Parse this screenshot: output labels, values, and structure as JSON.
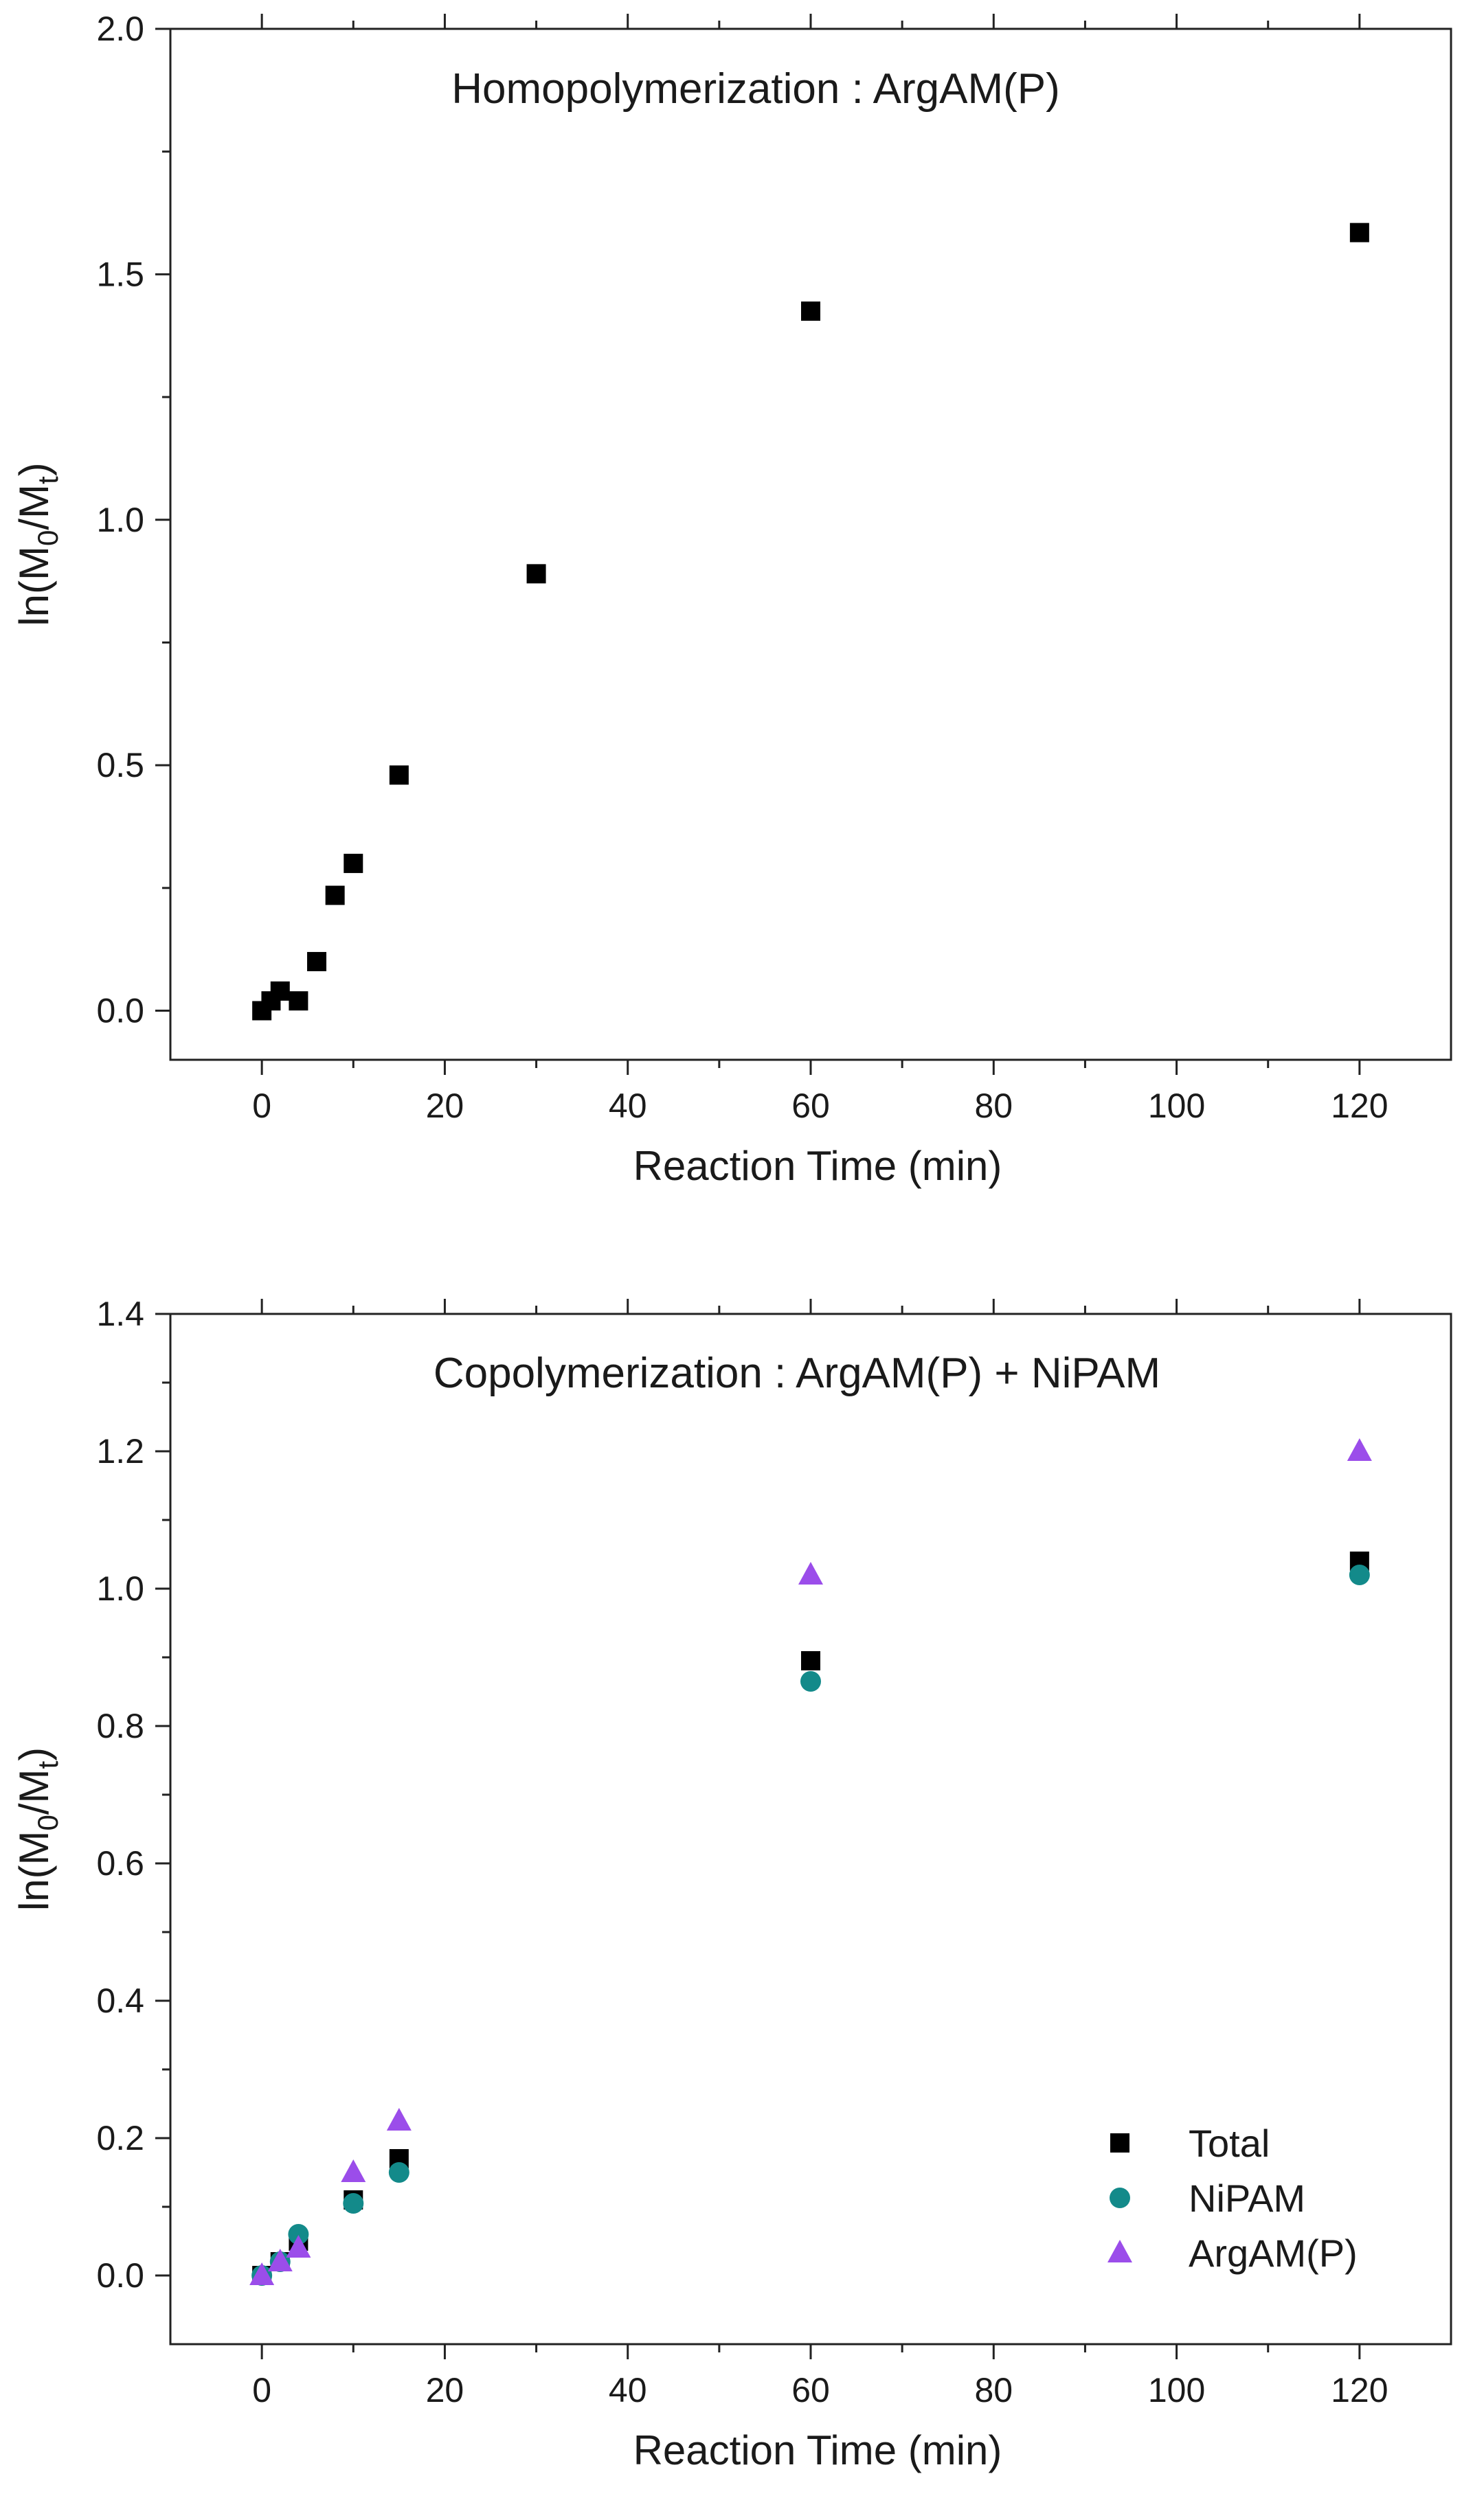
{
  "chart_data": [
    {
      "type": "scatter",
      "title": "Homopolymerization : ArgAM(P)",
      "xlabel": "Reaction Time (min)",
      "ylabel": {
        "prefix": "ln(M",
        "sub1": "0",
        "mid": "/M",
        "sub2": "t",
        "suffix": ")"
      },
      "xlim": [
        -10,
        130
      ],
      "ylim": [
        -0.1,
        2.0
      ],
      "xticks": [
        0,
        20,
        40,
        60,
        80,
        100,
        120
      ],
      "yticks": [
        "0.0",
        "0.5",
        "1.0",
        "1.5",
        "2.0"
      ],
      "legend": null,
      "series": [
        {
          "marker": "square",
          "color": "#000000",
          "x": [
            0,
            1,
            2,
            4,
            6,
            8,
            10,
            15,
            30,
            60,
            120
          ],
          "y": [
            0.0,
            0.02,
            0.04,
            0.02,
            0.1,
            0.235,
            0.3,
            0.48,
            0.89,
            1.425,
            1.585
          ]
        }
      ]
    },
    {
      "type": "scatter",
      "title": "Copolymerization : ArgAM(P) + NiPAM",
      "xlabel": "Reaction Time (min)",
      "ylabel": {
        "prefix": "ln(M",
        "sub1": "0",
        "mid": "/M",
        "sub2": "t",
        "suffix": ")"
      },
      "xlim": [
        -10,
        130
      ],
      "ylim": [
        -0.1,
        1.4
      ],
      "xticks": [
        0,
        20,
        40,
        60,
        80,
        100,
        120
      ],
      "yticks": [
        "0.0",
        "0.2",
        "0.4",
        "0.6",
        "0.8",
        "1.0",
        "1.2",
        "1.4"
      ],
      "legend": "bottom-right",
      "series": [
        {
          "name": "Total",
          "marker": "square",
          "color": "#000000",
          "x": [
            0,
            2,
            4,
            10,
            15,
            60,
            120
          ],
          "y": [
            0.0,
            0.02,
            0.05,
            0.11,
            0.17,
            0.895,
            1.04
          ]
        },
        {
          "name": "NiPAM",
          "marker": "circle",
          "color": "#138a8a",
          "x": [
            0,
            2,
            4,
            10,
            15,
            60,
            120
          ],
          "y": [
            0.0,
            0.02,
            0.06,
            0.105,
            0.15,
            0.865,
            1.02
          ]
        },
        {
          "name": "ArgAM(P)",
          "marker": "triangle",
          "color": "#9b4dea",
          "x": [
            0,
            2,
            4,
            10,
            15,
            60,
            120
          ],
          "y": [
            0.0,
            0.02,
            0.04,
            0.15,
            0.225,
            1.02,
            1.2
          ]
        }
      ]
    }
  ]
}
